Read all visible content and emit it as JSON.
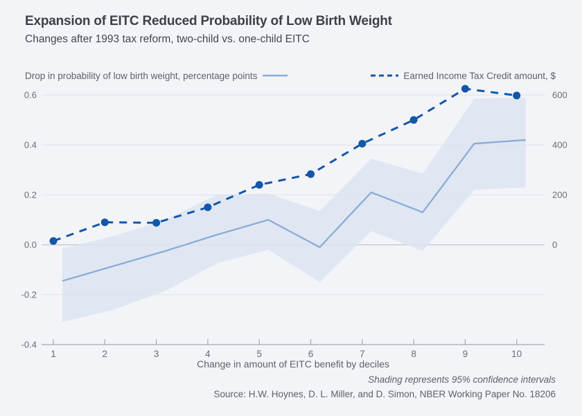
{
  "header": {
    "title": "Expansion of EITC Reduced Probability of Low Birth Weight",
    "subtitle": "Changes after 1993 tax reform, two-child vs. one-child EITC"
  },
  "colors": {
    "background": "#f3f4f8",
    "eitc_line": "#1257a8",
    "probability_line": "#8aabd9",
    "confidence_band": "#dce4f1",
    "gridline": "#e3e5ea",
    "zero_line": "#c0c3ca",
    "axis_line": "#a7aab1",
    "tick_text": "#6a6d74"
  },
  "chart_data": {
    "type": "line",
    "title": "Expansion of EITC Reduced Probability of Low Birth Weight",
    "subtitle": "Changes after 1993 tax reform, two-child vs. one-child EITC",
    "x": [
      1,
      2,
      3,
      4,
      5,
      6,
      7,
      8,
      9,
      10
    ],
    "xlabel": "Change in amount of EITC benefit by deciles",
    "grid": true,
    "legend_position": "top",
    "left_axis": {
      "label": "Drop in probability of low birth weight, percentage points",
      "ticks": [
        0.6,
        0.4,
        0.2,
        0.0,
        -0.2,
        -0.4
      ],
      "tick_labels": [
        "0.6",
        "0.4",
        "0.2",
        "0.0",
        "-0.2",
        "-0.4"
      ],
      "range": [
        -0.4,
        0.6
      ]
    },
    "right_axis": {
      "label": "Earned Income Tax Credit amount, $",
      "ticks": [
        600,
        400,
        200,
        0
      ],
      "tick_labels": [
        "600",
        "400",
        "200",
        "0"
      ],
      "range": [
        -400,
        600
      ]
    },
    "series": [
      {
        "name": "Drop in probability of low birth weight, percentage points",
        "axis": "left",
        "style": "solid",
        "color": "#8aabd9",
        "values": [
          -0.145,
          -0.085,
          -0.025,
          0.04,
          0.1,
          -0.01,
          0.21,
          0.13,
          0.405,
          0.42
        ]
      },
      {
        "name": "Earned Income Tax Credit amount, $",
        "axis": "right",
        "style": "dashed-with-dots",
        "color": "#1257a8",
        "values": [
          15,
          90,
          88,
          150,
          240,
          283,
          405,
          500,
          625,
          598
        ]
      }
    ],
    "confidence_band": {
      "level": "95%",
      "axis": "left",
      "fill": "#dce4f1",
      "upper": [
        -0.015,
        0.035,
        0.1,
        0.2,
        0.205,
        0.135,
        0.345,
        0.285,
        0.585,
        0.59
      ],
      "lower": [
        -0.31,
        -0.26,
        -0.185,
        -0.075,
        -0.02,
        -0.15,
        0.055,
        -0.025,
        0.22,
        0.23
      ]
    }
  },
  "footer": {
    "note": "Shading represents 95% confidence intervals",
    "source": "Source: H.W. Hoynes, D. L. Miller, and D. Simon, NBER Working Paper No. 18206"
  }
}
